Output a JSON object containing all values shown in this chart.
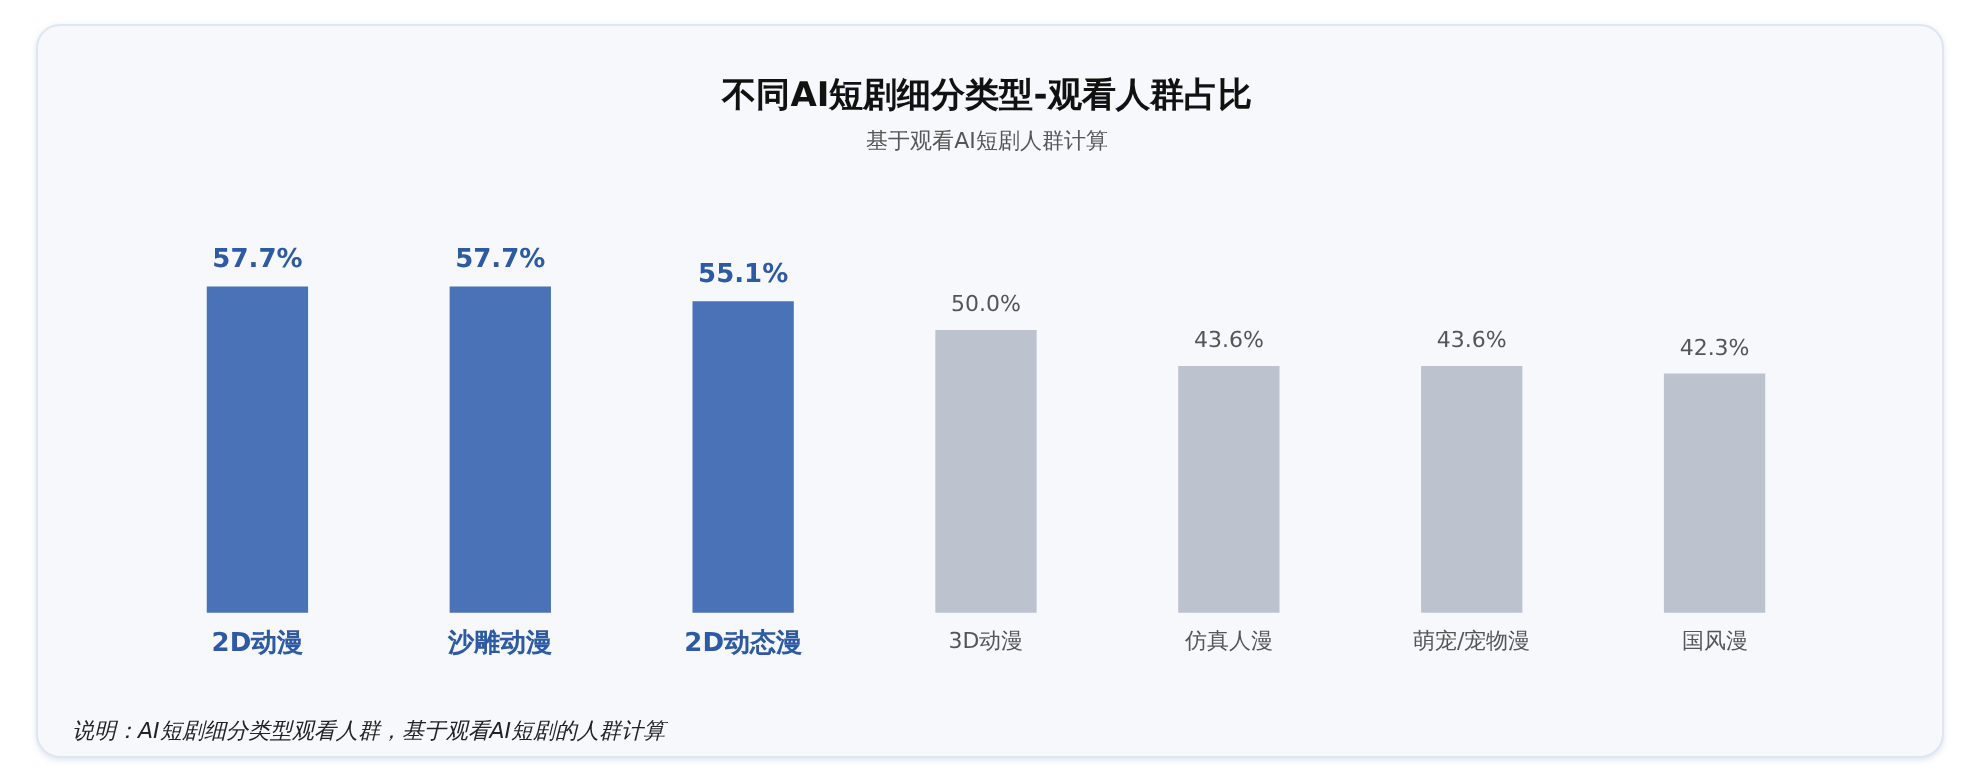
{
  "chart_data": {
    "type": "bar",
    "title": "不同AI短剧细分类型-观看人群占比",
    "subtitle": "基于观看AI短剧人群计算",
    "categories": [
      "2D动漫",
      "沙雕动漫",
      "2D动态漫",
      "3D动漫",
      "仿真人漫",
      "萌宠/宠物漫",
      "国风漫"
    ],
    "values": [
      57.7,
      57.7,
      55.1,
      50.0,
      43.6,
      43.6,
      42.3
    ],
    "value_labels": [
      "57.7%",
      "57.7%",
      "55.1%",
      "50.0%",
      "43.6%",
      "43.6%",
      "42.3%"
    ],
    "colors": [
      "#4a72b6",
      "#4a72b6",
      "#4a72b6",
      "#bcc3ce",
      "#bcc3ce",
      "#bcc3ce",
      "#bcc3ce"
    ],
    "grid": false,
    "legend": false,
    "annotations": [
      "说明：AI短剧细分类型观看人群，基于观看AI短剧的人群计算"
    ]
  }
}
